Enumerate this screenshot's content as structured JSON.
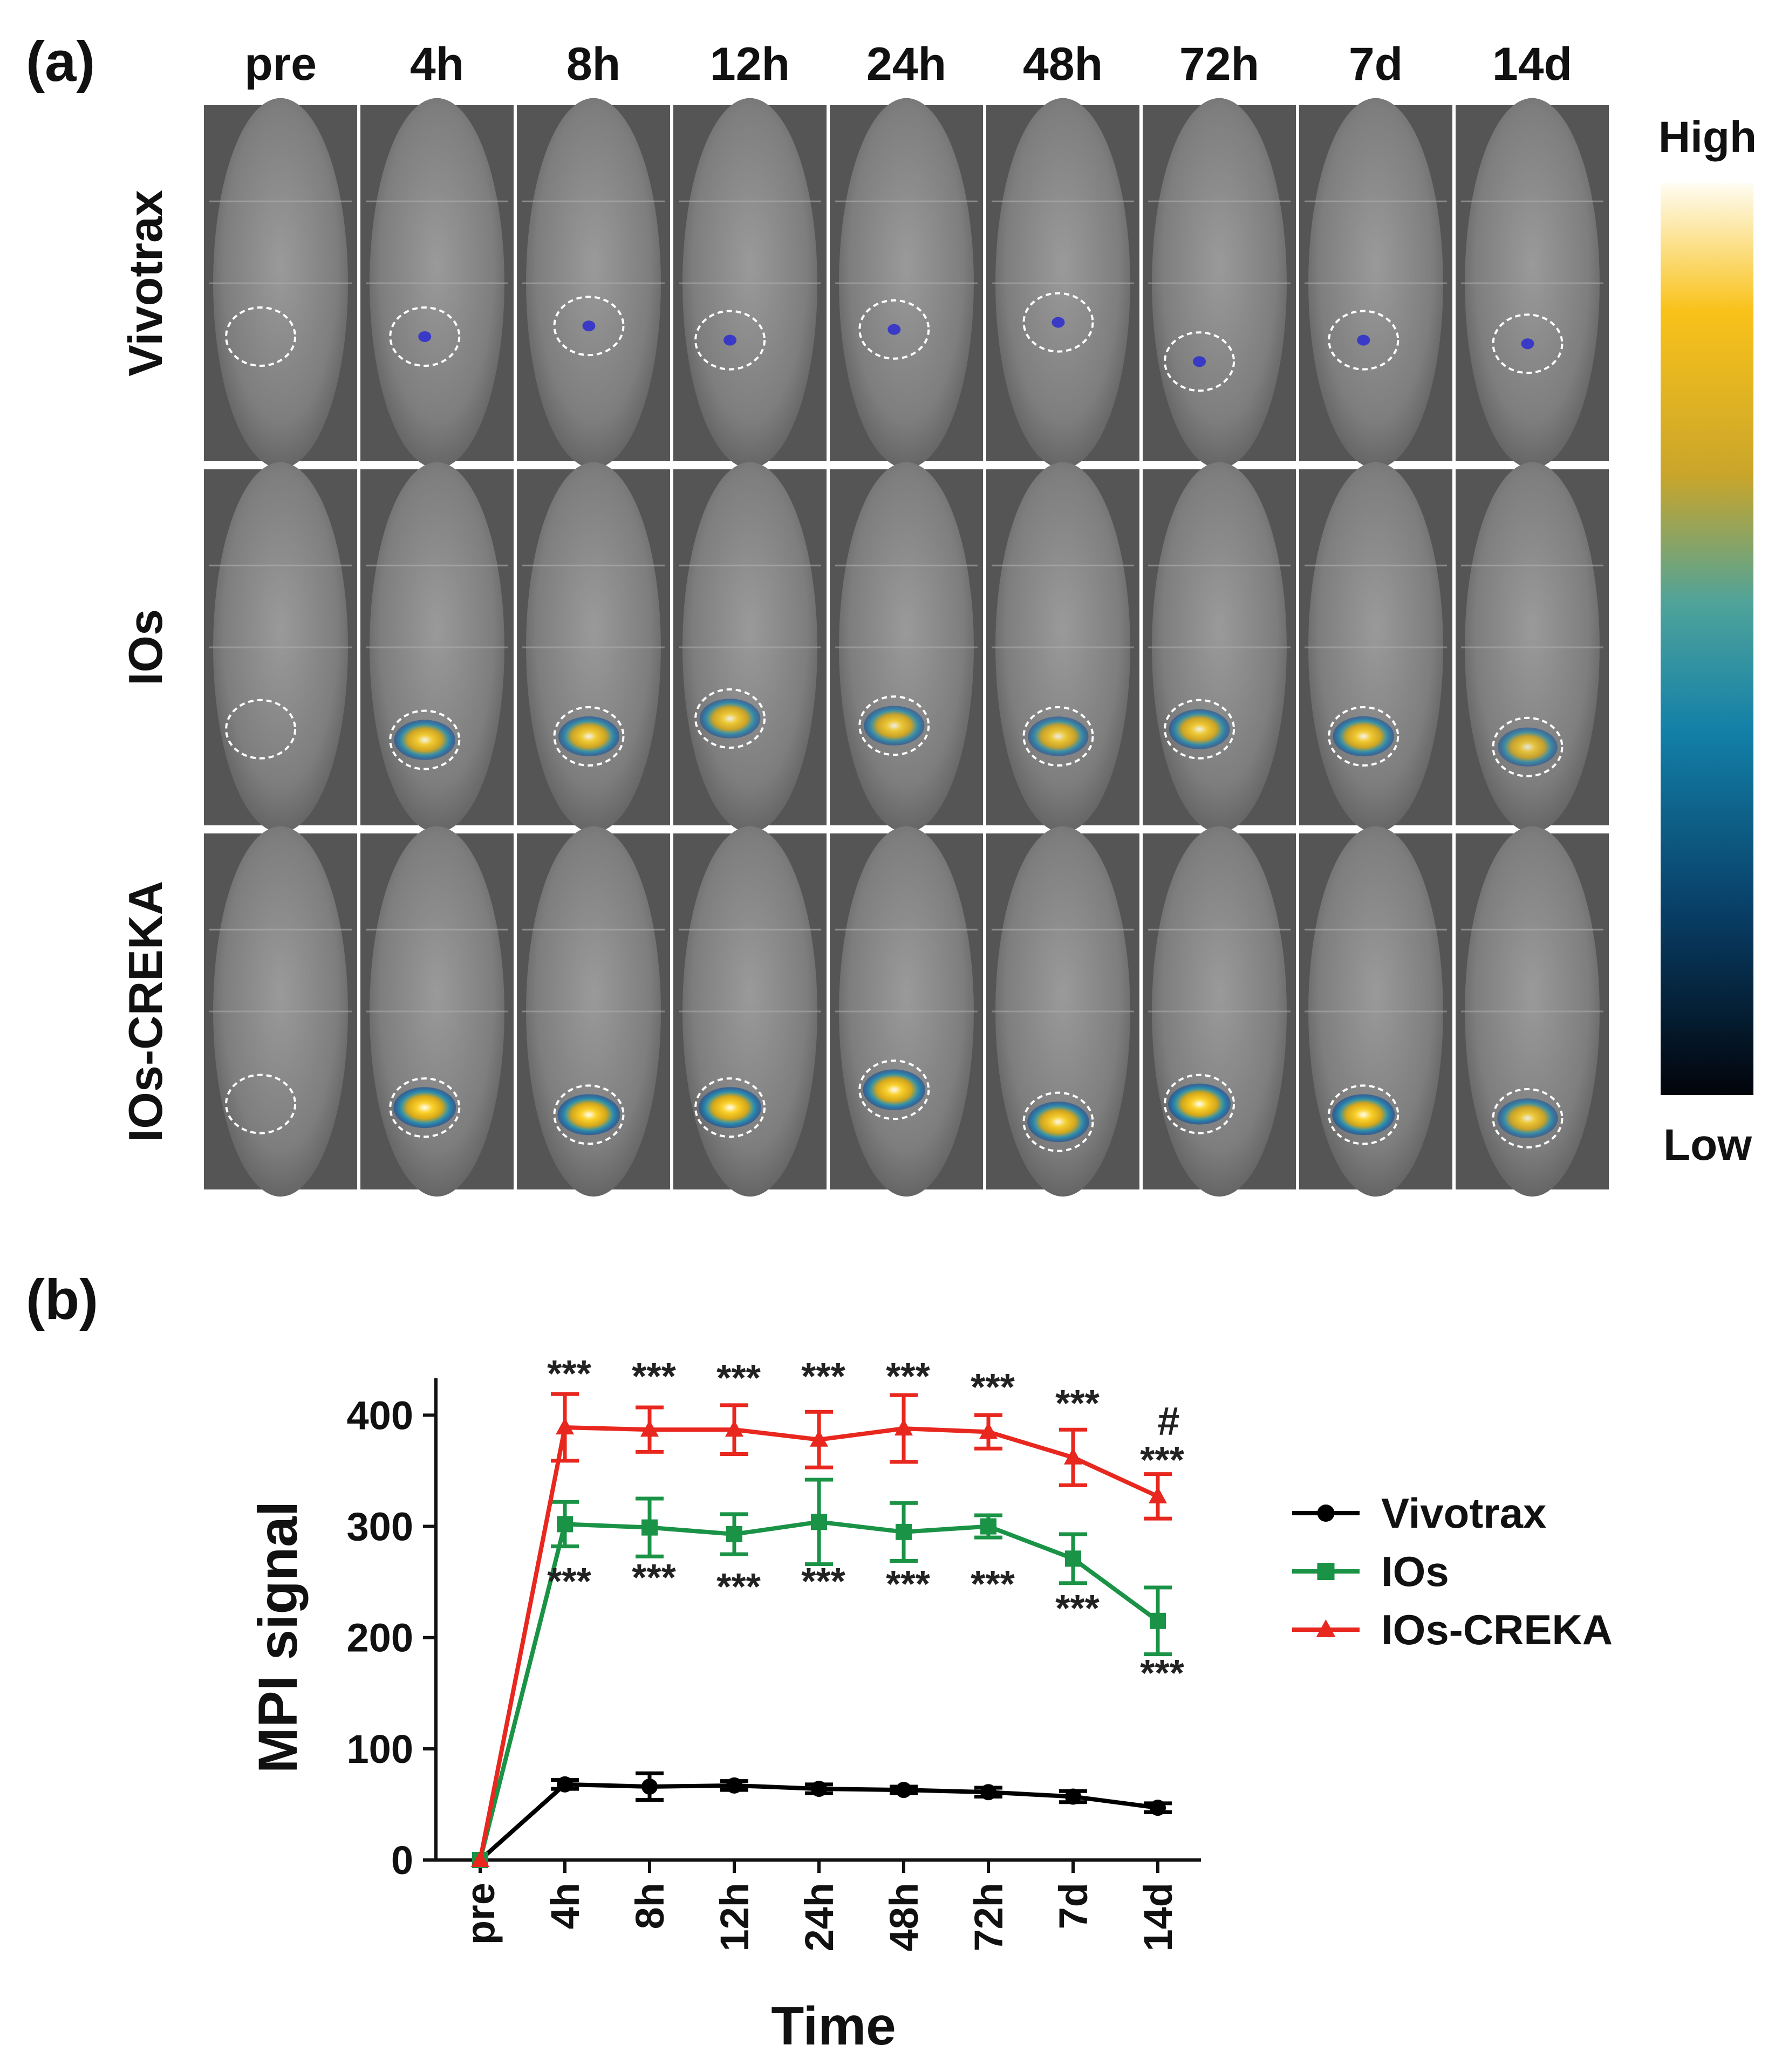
{
  "panel_a": {
    "label": "(a)",
    "columns": [
      "pre",
      "4h",
      "8h",
      "12h",
      "24h",
      "48h",
      "72h",
      "7d",
      "14d"
    ],
    "rows": [
      "Vivotrax",
      "IOs",
      "IOs-CREKA"
    ],
    "colorbar": {
      "high_label": "High",
      "low_label": "Low",
      "colors": [
        "#fefcf2",
        "#f9c21a",
        "#c9a52a",
        "#4fa39a",
        "#1380a8",
        "#083e66",
        "#02040a"
      ]
    },
    "signal_intensity": [
      [
        0.0,
        0.06,
        0.07,
        0.06,
        0.05,
        0.04,
        0.05,
        0.06,
        0.05
      ],
      [
        0.0,
        0.8,
        0.78,
        0.72,
        0.7,
        0.68,
        0.75,
        0.8,
        0.55
      ],
      [
        0.0,
        1.0,
        1.0,
        1.0,
        0.95,
        0.9,
        1.0,
        1.0,
        0.7
      ]
    ],
    "colors": {
      "border": "#ffffff",
      "ring": "#ffffff",
      "low_signal": "#2b2bd0"
    }
  },
  "chart_data": {
    "label": "(b)",
    "type": "line",
    "xlabel": "Time",
    "ylabel": "MPI signal",
    "categories": [
      "pre",
      "4h",
      "8h",
      "12h",
      "24h",
      "48h",
      "72h",
      "7d",
      "14d"
    ],
    "yticks": [
      0,
      100,
      200,
      300,
      400
    ],
    "ylim": [
      0,
      450
    ],
    "series": [
      {
        "name": "Vivotrax",
        "color": "#000000",
        "marker": "circle",
        "values": [
          0,
          68,
          66,
          67,
          64,
          63,
          61,
          57,
          47
        ],
        "errors": [
          0,
          4,
          12,
          4,
          4,
          3,
          4,
          5,
          4
        ]
      },
      {
        "name": "IOs",
        "color": "#1a9346",
        "marker": "square",
        "values": [
          0,
          302,
          299,
          293,
          304,
          295,
          300,
          271,
          215
        ],
        "errors": [
          0,
          20,
          26,
          18,
          38,
          26,
          10,
          22,
          30
        ]
      },
      {
        "name": "IOs-CREKA",
        "color": "#e8271f",
        "marker": "triangle",
        "values": [
          0,
          389,
          387,
          387,
          378,
          388,
          385,
          362,
          327
        ],
        "errors": [
          0,
          30,
          20,
          22,
          25,
          30,
          15,
          25,
          20
        ]
      }
    ],
    "annotations": {
      "above": [
        "***",
        "***",
        "***",
        "***",
        "***",
        "***",
        "***",
        "***"
      ],
      "below": [
        "***",
        "***",
        "***",
        "***",
        "***",
        "***",
        "***",
        "***"
      ],
      "hash": "#"
    },
    "legend": {
      "position": "right"
    }
  }
}
